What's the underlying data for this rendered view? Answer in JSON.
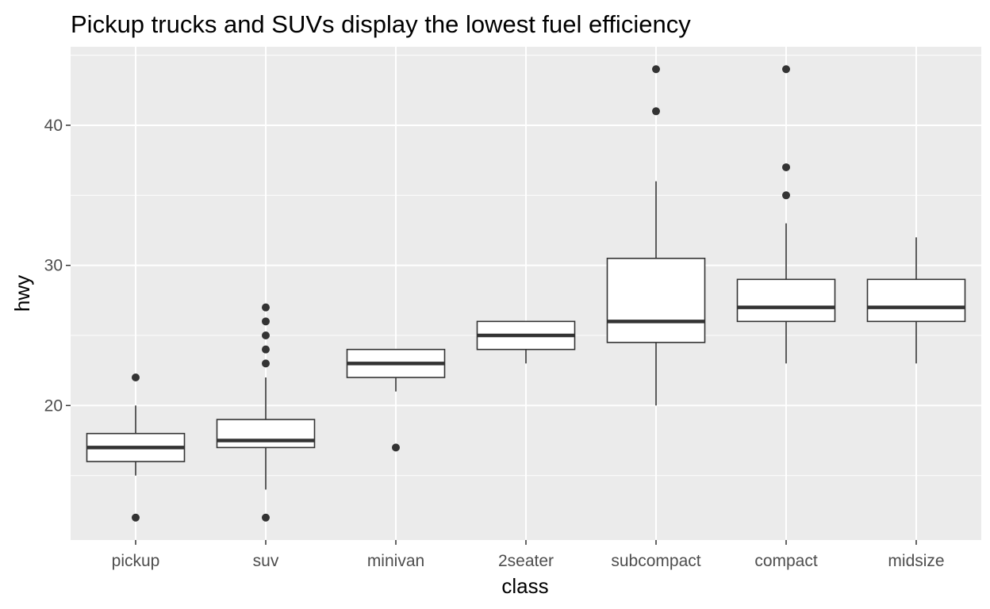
{
  "chart_data": {
    "type": "box",
    "title": "Pickup trucks and SUVs display the lowest fuel efficiency",
    "xlabel": "class",
    "ylabel": "hwy",
    "ylim": [
      10.4,
      45.6
    ],
    "yticks": [
      20,
      30,
      40
    ],
    "grid": true,
    "legend": "none",
    "categories": [
      "pickup",
      "suv",
      "minivan",
      "2seater",
      "subcompact",
      "compact",
      "midsize"
    ],
    "boxes": [
      {
        "category": "pickup",
        "q1": 16,
        "median": 17,
        "q3": 18,
        "whisker_low": 15,
        "whisker_high": 20,
        "outliers": [
          12,
          22
        ]
      },
      {
        "category": "suv",
        "q1": 17,
        "median": 17.5,
        "q3": 19,
        "whisker_low": 14,
        "whisker_high": 22,
        "outliers": [
          12,
          23,
          24,
          25,
          26,
          27
        ]
      },
      {
        "category": "minivan",
        "q1": 22,
        "median": 23,
        "q3": 24,
        "whisker_low": 21,
        "whisker_high": 24,
        "outliers": [
          17
        ]
      },
      {
        "category": "2seater",
        "q1": 24,
        "median": 25,
        "q3": 26,
        "whisker_low": 23,
        "whisker_high": 26,
        "outliers": []
      },
      {
        "category": "subcompact",
        "q1": 24.5,
        "median": 26,
        "q3": 30.5,
        "whisker_low": 20,
        "whisker_high": 36,
        "outliers": [
          41,
          44
        ]
      },
      {
        "category": "compact",
        "q1": 26,
        "median": 27,
        "q3": 29,
        "whisker_low": 23,
        "whisker_high": 33,
        "outliers": [
          35,
          37,
          44
        ]
      },
      {
        "category": "midsize",
        "q1": 26,
        "median": 27,
        "q3": 29,
        "whisker_low": 23,
        "whisker_high": 32,
        "outliers": []
      }
    ],
    "colors": {
      "panel": "#ebebeb",
      "grid_major": "#ffffff",
      "box_fill": "#ffffff",
      "box_line": "#333333",
      "tick_text": "#4d4d4d",
      "tick_mark": "#333333"
    }
  }
}
